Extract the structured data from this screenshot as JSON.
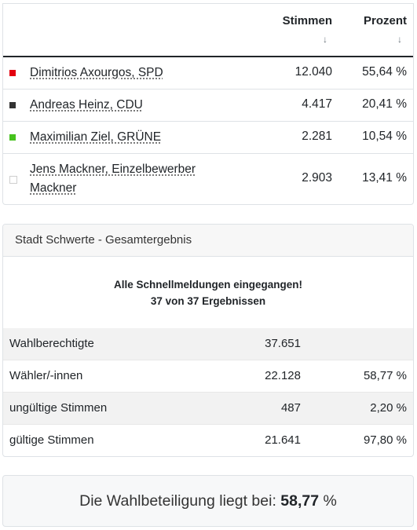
{
  "results": {
    "columns": {
      "votes": "Stimmen",
      "percent": "Prozent",
      "sort_glyph": "↓"
    },
    "candidates": [
      {
        "name": "Dimitrios Axourgos, SPD",
        "votes": "12.040",
        "percent": "55,64 %",
        "color": "#e3000f"
      },
      {
        "name": "Andreas Heinz, CDU",
        "votes": "4.417",
        "percent": "20,41 %",
        "color": "#333333"
      },
      {
        "name": "Maximilian Ziel, GRÜNE",
        "votes": "2.281",
        "percent": "10,54 %",
        "color": "#46c21e"
      },
      {
        "name": "Jens Mackner, Einzelbewerber Mackner",
        "votes": "2.903",
        "percent": "13,41 %",
        "color": "#ffffff"
      }
    ]
  },
  "overall": {
    "title": "Stadt Schwerte - Gesamtergebnis",
    "notice_line1": "Alle Schnellmeldungen eingegangen!",
    "notice_line2": "37 von 37 Ergebnissen",
    "rows": [
      {
        "label": "Wahlberechtigte",
        "value": "37.651",
        "percent": ""
      },
      {
        "label": "Wähler/-innen",
        "value": "22.128",
        "percent": "58,77 %"
      },
      {
        "label": "ungültige Stimmen",
        "value": "487",
        "percent": "2,20 %"
      },
      {
        "label": "gültige Stimmen",
        "value": "21.641",
        "percent": "97,80 %"
      }
    ]
  },
  "turnout": {
    "text": "Die Wahlbeteiligung liegt bei:",
    "value": "58,77",
    "unit": "%"
  }
}
